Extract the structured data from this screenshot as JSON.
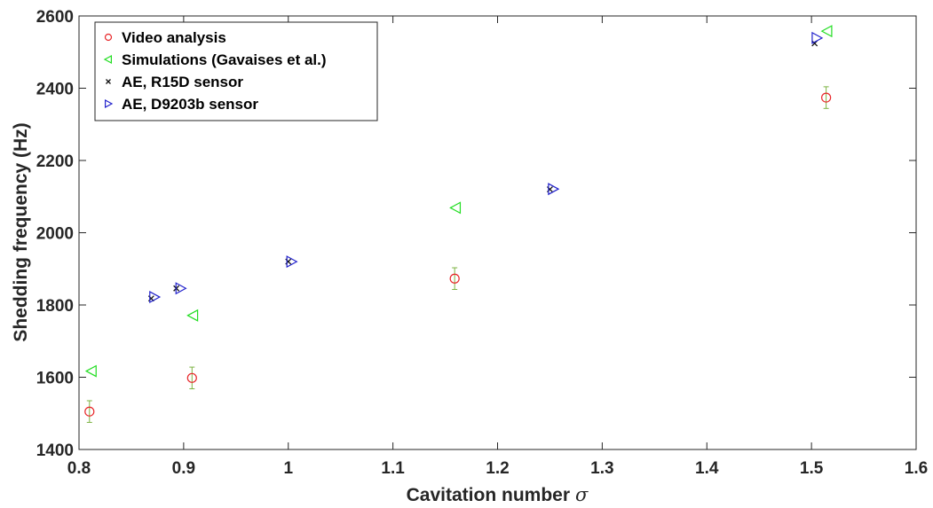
{
  "chart_data": {
    "type": "scatter",
    "title": "",
    "xlabel": "Cavitation number",
    "xlabel_symbol": "σ",
    "ylabel": "Shedding frequency (Hz)",
    "xlim": [
      0.8,
      1.6
    ],
    "ylim": [
      1400,
      2600
    ],
    "x_ticks": [
      "0.8",
      "0.9",
      "1",
      "1.1",
      "1.2",
      "1.3",
      "1.4",
      "1.5",
      "1.6"
    ],
    "y_ticks": [
      "1400",
      "1600",
      "1800",
      "2000",
      "2200",
      "2400",
      "2600"
    ],
    "grid": false,
    "legend_position": "top-left",
    "series": [
      {
        "name": "Video analysis",
        "marker": "circle",
        "color": "#e8272a",
        "error_bar_color": "#7cb342",
        "points": [
          {
            "x": 0.81,
            "y": 1505,
            "err": 30
          },
          {
            "x": 0.908,
            "y": 1598,
            "err": 30
          },
          {
            "x": 1.159,
            "y": 1873,
            "err": 30
          },
          {
            "x": 1.514,
            "y": 2374,
            "err": 30
          }
        ]
      },
      {
        "name": "Simulations (Gavaises et al.)",
        "marker": "triangle-left",
        "color": "#22dd22",
        "points": [
          {
            "x": 0.812,
            "y": 1617
          },
          {
            "x": 0.909,
            "y": 1771
          },
          {
            "x": 1.16,
            "y": 2069
          },
          {
            "x": 1.515,
            "y": 2558
          }
        ]
      },
      {
        "name": "AE, R15D sensor",
        "marker": "x",
        "color": "#111111",
        "points": [
          {
            "x": 0.869,
            "y": 1818
          },
          {
            "x": 0.893,
            "y": 1846
          },
          {
            "x": 1.0,
            "y": 1920
          },
          {
            "x": 1.25,
            "y": 2120
          },
          {
            "x": 1.503,
            "y": 2524
          }
        ]
      },
      {
        "name": "AE, D9203b sensor",
        "marker": "triangle-right",
        "color": "#2222cc",
        "points": [
          {
            "x": 0.872,
            "y": 1822
          },
          {
            "x": 0.897,
            "y": 1846
          },
          {
            "x": 1.003,
            "y": 1920
          },
          {
            "x": 1.253,
            "y": 2121
          },
          {
            "x": 1.505,
            "y": 2539
          }
        ]
      }
    ]
  }
}
